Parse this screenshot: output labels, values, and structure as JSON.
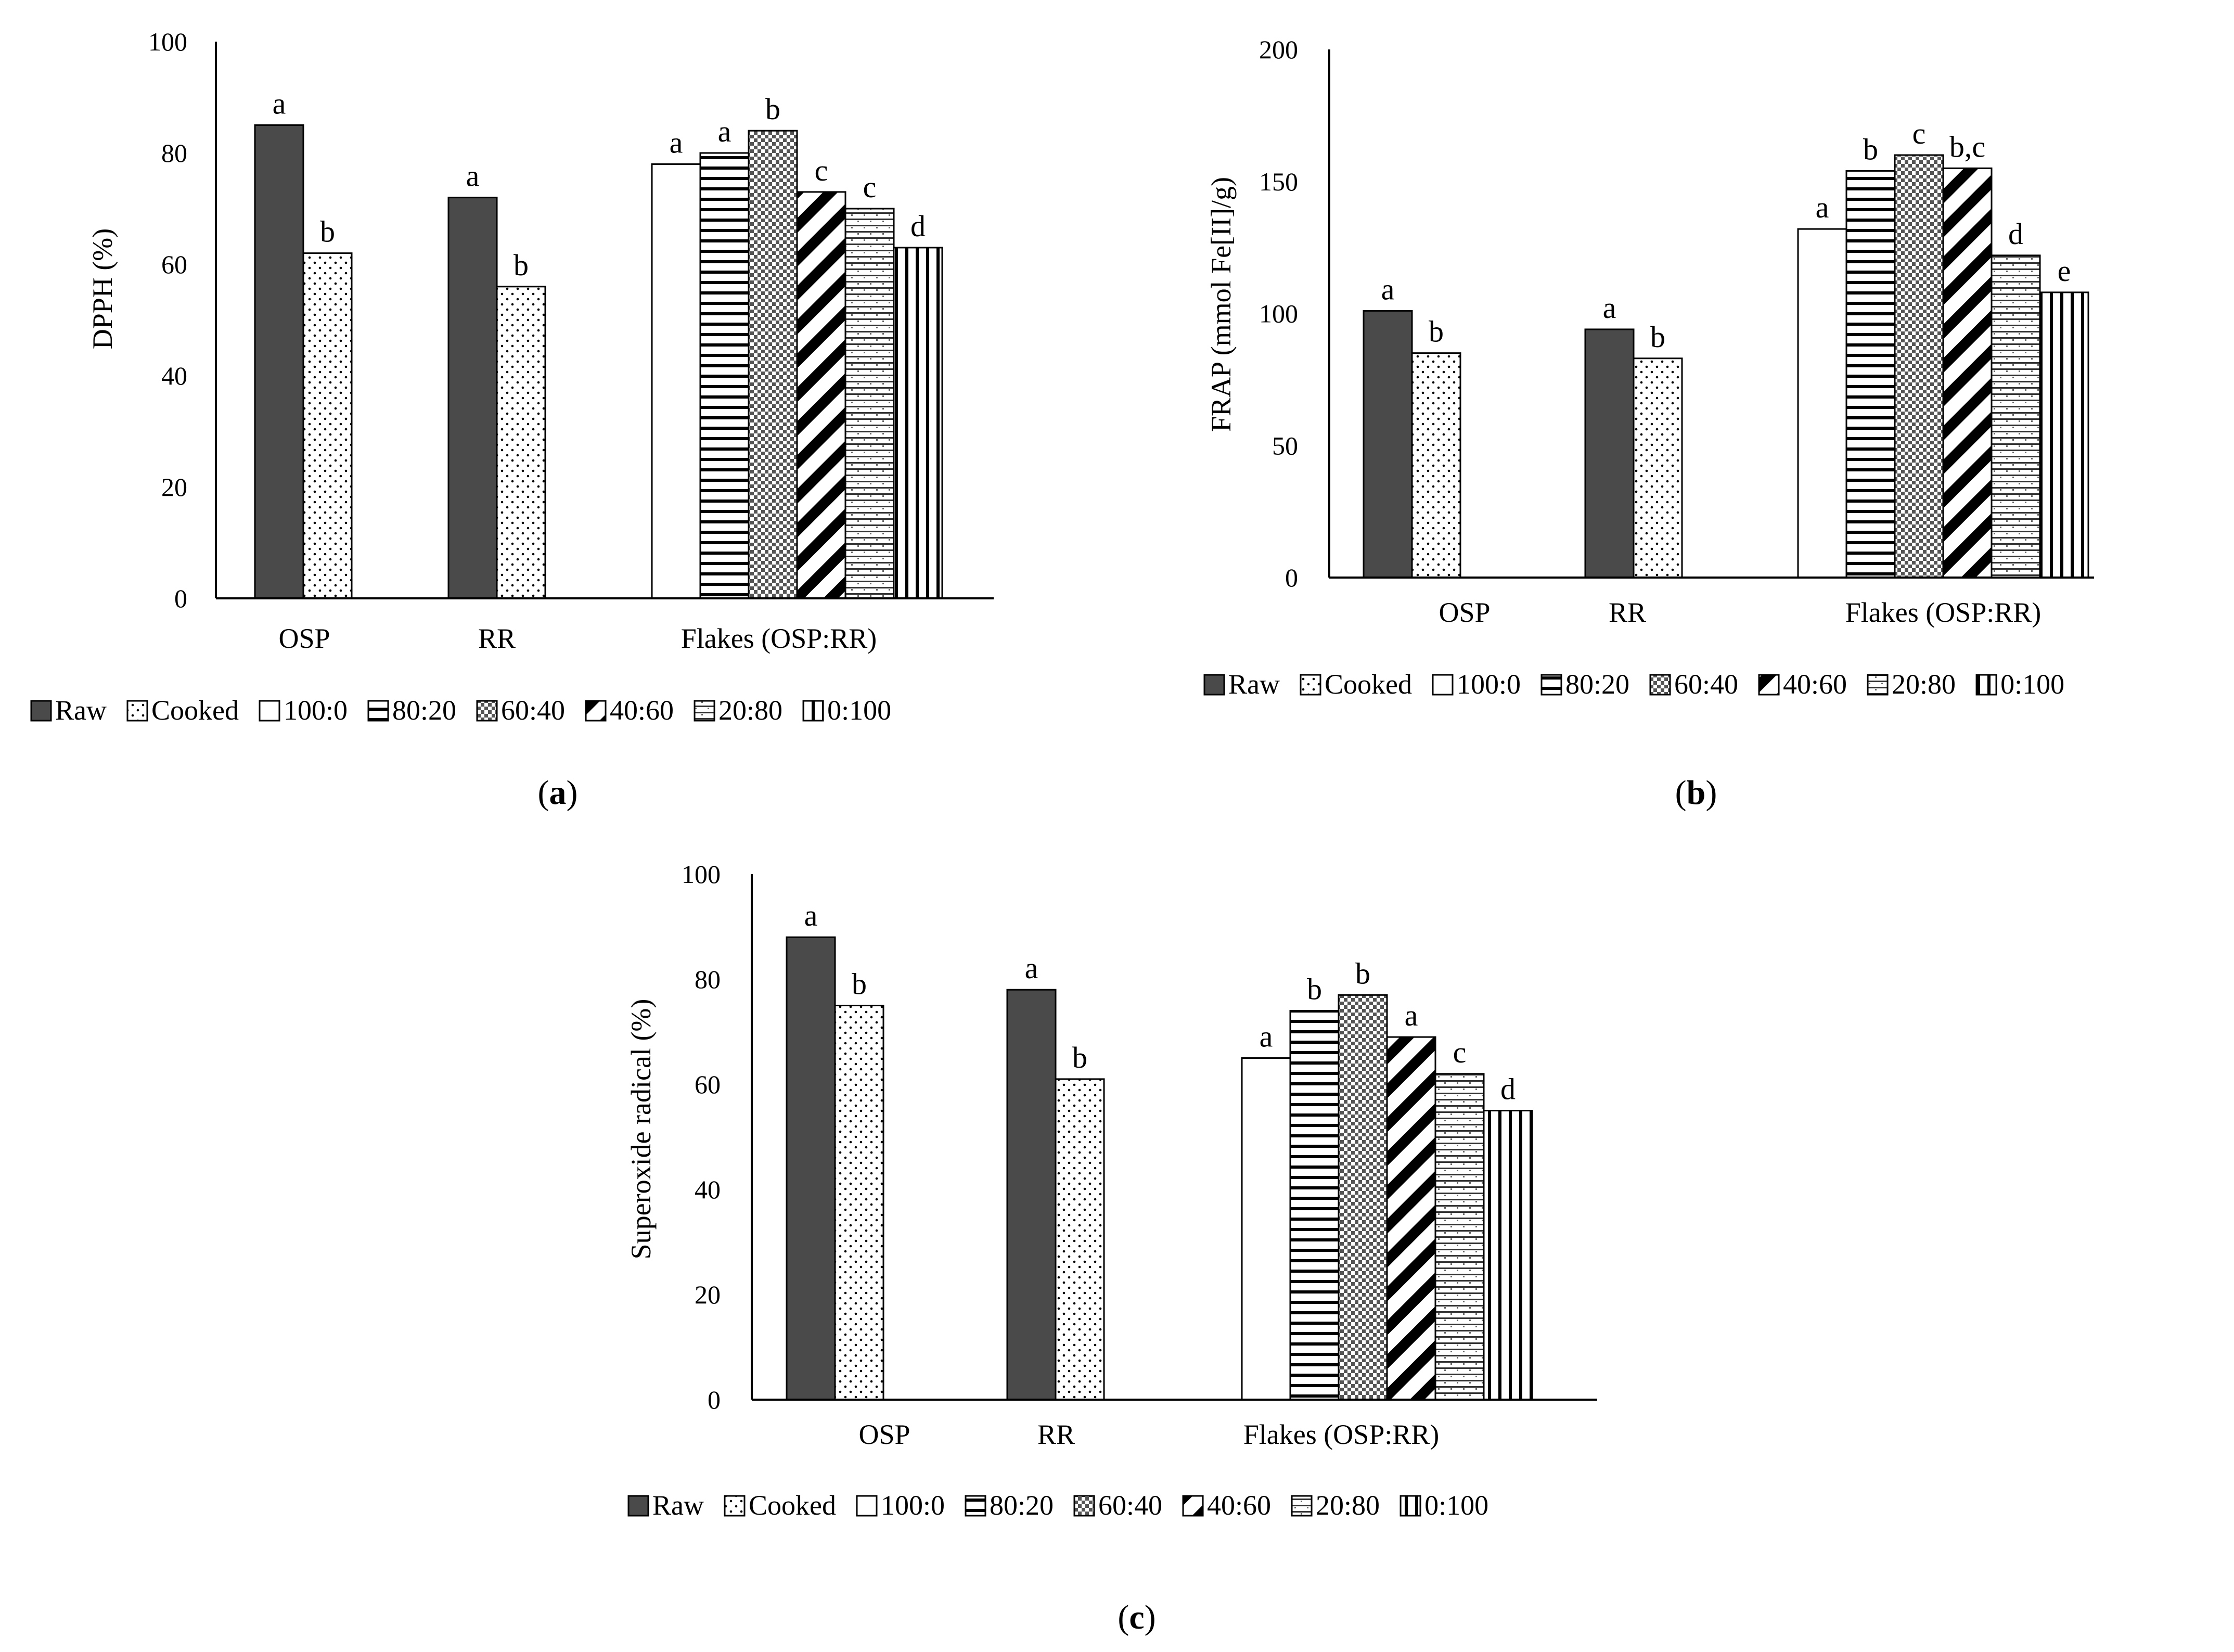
{
  "chart_data": [
    {
      "type": "bar",
      "panel": "a",
      "ylabel": "DPPH (%)",
      "ylim": [
        0,
        100
      ],
      "yticks": [
        0,
        20,
        40,
        60,
        80,
        100
      ],
      "groups": [
        {
          "label": "OSP",
          "bars": [
            {
              "series": "Raw",
              "value": 85,
              "sig": "a"
            },
            {
              "series": "Cooked",
              "value": 62,
              "sig": "b"
            }
          ]
        },
        {
          "label": "RR",
          "bars": [
            {
              "series": "Raw",
              "value": 72,
              "sig": "a"
            },
            {
              "series": "Cooked",
              "value": 56,
              "sig": "b"
            }
          ]
        },
        {
          "label": "Flakes (OSP:RR)",
          "bars": [
            {
              "series": "100:0",
              "value": 78,
              "sig": "a"
            },
            {
              "series": "80:20",
              "value": 80,
              "sig": "a"
            },
            {
              "series": "60:40",
              "value": 84,
              "sig": "b"
            },
            {
              "series": "40:60",
              "value": 73,
              "sig": "c"
            },
            {
              "series": "20:80",
              "value": 70,
              "sig": "c"
            },
            {
              "series": "0:100",
              "value": 63,
              "sig": "d"
            }
          ]
        }
      ]
    },
    {
      "type": "bar",
      "panel": "b",
      "ylabel": "FRAP (mmol Fe[II]/g)",
      "ylim": [
        0,
        200
      ],
      "yticks": [
        0,
        50,
        100,
        150,
        200
      ],
      "groups": [
        {
          "label": "OSP",
          "bars": [
            {
              "series": "Raw",
              "value": 101,
              "sig": "a"
            },
            {
              "series": "Cooked",
              "value": 85,
              "sig": "b"
            }
          ]
        },
        {
          "label": "RR",
          "bars": [
            {
              "series": "Raw",
              "value": 94,
              "sig": "a"
            },
            {
              "series": "Cooked",
              "value": 83,
              "sig": "b"
            }
          ]
        },
        {
          "label": "Flakes (OSP:RR)",
          "bars": [
            {
              "series": "100:0",
              "value": 132,
              "sig": "a"
            },
            {
              "series": "80:20",
              "value": 154,
              "sig": "b"
            },
            {
              "series": "60:40",
              "value": 160,
              "sig": "c"
            },
            {
              "series": "40:60",
              "value": 155,
              "sig": "b,c"
            },
            {
              "series": "20:80",
              "value": 122,
              "sig": "d"
            },
            {
              "series": "0:100",
              "value": 108,
              "sig": "e"
            }
          ]
        }
      ]
    },
    {
      "type": "bar",
      "panel": "c",
      "ylabel": "Superoxide radical (%)",
      "ylim": [
        0,
        100
      ],
      "yticks": [
        0,
        20,
        40,
        60,
        80,
        100
      ],
      "groups": [
        {
          "label": "OSP",
          "bars": [
            {
              "series": "Raw",
              "value": 88,
              "sig": "a"
            },
            {
              "series": "Cooked",
              "value": 75,
              "sig": "b"
            }
          ]
        },
        {
          "label": "RR",
          "bars": [
            {
              "series": "Raw",
              "value": 78,
              "sig": "a"
            },
            {
              "series": "Cooked",
              "value": 61,
              "sig": "b"
            }
          ]
        },
        {
          "label": "Flakes (OSP:RR)",
          "bars": [
            {
              "series": "100:0",
              "value": 65,
              "sig": "a"
            },
            {
              "series": "80:20",
              "value": 74,
              "sig": "b"
            },
            {
              "series": "60:40",
              "value": 77,
              "sig": "b"
            },
            {
              "series": "40:60",
              "value": 69,
              "sig": "a"
            },
            {
              "series": "20:80",
              "value": 62,
              "sig": "c"
            },
            {
              "series": "0:100",
              "value": 55,
              "sig": "d"
            }
          ]
        }
      ]
    }
  ],
  "legend": {
    "entries": [
      {
        "label": "Raw",
        "pattern": "raw"
      },
      {
        "label": "Cooked",
        "pattern": "cooked"
      },
      {
        "label": "100:0",
        "pattern": "p100"
      },
      {
        "label": "80:20",
        "pattern": "p80"
      },
      {
        "label": "60:40",
        "pattern": "p60"
      },
      {
        "label": "40:60",
        "pattern": "p40"
      },
      {
        "label": "20:80",
        "pattern": "p20"
      },
      {
        "label": "0:100",
        "pattern": "p0"
      }
    ]
  },
  "panel_labels": {
    "a": "a",
    "b": "b",
    "c": "c"
  },
  "colors": {
    "raw_fill": "#4a4a4a",
    "stroke": "#000000",
    "axis": "#000000",
    "background": "#ffffff"
  }
}
